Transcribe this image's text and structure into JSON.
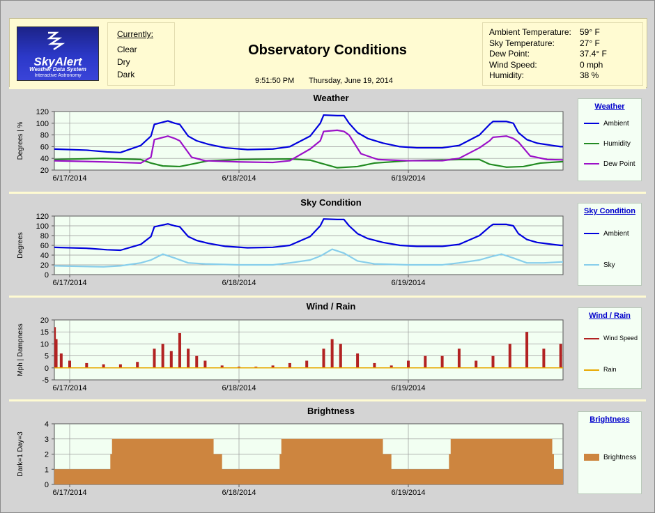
{
  "logo": {
    "brand": "SkyAlert",
    "sub1": "Weather Data System",
    "sub2": "Interactive Astronomy"
  },
  "currently": {
    "title": "Currently:",
    "items": [
      "Clear",
      "Dry",
      "Dark"
    ]
  },
  "title": "Observatory Conditions",
  "time": "9:51:50 PM",
  "date": "Thursday, June 19, 2014",
  "readings": [
    {
      "label": "Ambient Temperature:",
      "value": "59° F"
    },
    {
      "label": "Sky Temperature:",
      "value": "27° F"
    },
    {
      "label": "Dew Point:",
      "value": "37.4° F"
    },
    {
      "label": "Wind Speed:",
      "value": "0 mph"
    },
    {
      "label": "Humidity:",
      "value": "38 %"
    }
  ],
  "colors": {
    "ambient": "#0000dd",
    "humidity": "#228b22",
    "dewpoint": "#9b10c8",
    "sky": "#87ceeb",
    "wind": "#b22222",
    "rain": "#e8a800",
    "brightness": "#cd853f",
    "plot_bg": "#f2fff2"
  },
  "chart_data": [
    {
      "type": "line",
      "title": "Weather",
      "ylabel": "Degrees | %",
      "ylim": [
        20,
        120
      ],
      "yticks": [
        20,
        40,
        60,
        80,
        100,
        120
      ],
      "xlim": [
        0,
        3
      ],
      "xticks": [
        {
          "x": 0,
          "label": "6/17/2014"
        },
        {
          "x": 1,
          "label": "6/18/2014"
        },
        {
          "x": 2,
          "label": "6/19/2014"
        }
      ],
      "grid": true,
      "legend_title": "Weather",
      "series": [
        {
          "name": "Ambient",
          "color": "#0000dd",
          "x": [
            -0.1,
            0.1,
            0.22,
            0.3,
            0.42,
            0.48,
            0.5,
            0.58,
            0.62,
            0.65,
            0.7,
            0.75,
            0.82,
            0.92,
            1.05,
            1.2,
            1.3,
            1.42,
            1.48,
            1.5,
            1.58,
            1.62,
            1.65,
            1.7,
            1.76,
            1.85,
            1.95,
            2.05,
            2.2,
            2.3,
            2.42,
            2.48,
            2.5,
            2.58,
            2.62,
            2.65,
            2.7,
            2.76,
            2.85,
            2.9,
            2.95,
            3
          ],
          "y": [
            56,
            54,
            51,
            50,
            62,
            78,
            98,
            104,
            100,
            98,
            78,
            70,
            64,
            58,
            55,
            56,
            60,
            78,
            100,
            114,
            113,
            113,
            100,
            84,
            74,
            66,
            60,
            58,
            58,
            62,
            80,
            98,
            103,
            103,
            100,
            84,
            72,
            66,
            62,
            60,
            60,
            60
          ]
        },
        {
          "name": "Humidity",
          "color": "#228b22",
          "x": [
            -0.1,
            0.2,
            0.42,
            0.48,
            0.55,
            0.65,
            0.72,
            0.82,
            1.0,
            1.3,
            1.42,
            1.48,
            1.58,
            1.7,
            1.8,
            2.0,
            2.3,
            2.42,
            2.48,
            2.58,
            2.68,
            2.78,
            3
          ],
          "y": [
            38,
            40,
            38,
            32,
            27,
            26,
            30,
            36,
            38,
            39,
            37,
            32,
            24,
            26,
            32,
            36,
            38,
            38,
            30,
            25,
            26,
            32,
            36
          ]
        },
        {
          "name": "Dew Point",
          "color": "#9b10c8",
          "x": [
            -0.1,
            0.2,
            0.42,
            0.48,
            0.5,
            0.58,
            0.62,
            0.65,
            0.72,
            0.8,
            1.0,
            1.2,
            1.3,
            1.42,
            1.48,
            1.5,
            1.58,
            1.62,
            1.65,
            1.72,
            1.82,
            2.0,
            2.2,
            2.3,
            2.42,
            2.48,
            2.5,
            2.58,
            2.62,
            2.65,
            2.72,
            2.82,
            3
          ],
          "y": [
            36,
            34,
            32,
            42,
            72,
            78,
            74,
            70,
            42,
            36,
            34,
            33,
            36,
            56,
            70,
            86,
            88,
            86,
            80,
            48,
            38,
            36,
            36,
            40,
            58,
            70,
            76,
            78,
            74,
            68,
            44,
            38,
            37
          ]
        }
      ]
    },
    {
      "type": "line",
      "title": "Sky Condition",
      "ylabel": "Degrees",
      "ylim": [
        0,
        120
      ],
      "yticks": [
        0,
        20,
        40,
        60,
        80,
        100,
        120
      ],
      "xlim": [
        0,
        3
      ],
      "xticks": [
        {
          "x": 0,
          "label": "6/17/2014"
        },
        {
          "x": 1,
          "label": "6/18/2014"
        },
        {
          "x": 2,
          "label": "6/19/2014"
        }
      ],
      "grid": true,
      "legend_title": "Sky Condition",
      "series": [
        {
          "name": "Ambient",
          "color": "#0000dd",
          "x": [
            -0.1,
            0.1,
            0.22,
            0.3,
            0.42,
            0.48,
            0.5,
            0.58,
            0.62,
            0.65,
            0.7,
            0.75,
            0.82,
            0.92,
            1.05,
            1.2,
            1.3,
            1.42,
            1.48,
            1.5,
            1.58,
            1.62,
            1.65,
            1.7,
            1.76,
            1.85,
            1.95,
            2.05,
            2.2,
            2.3,
            2.42,
            2.48,
            2.5,
            2.58,
            2.62,
            2.65,
            2.7,
            2.76,
            2.85,
            2.9,
            2.95,
            3
          ],
          "y": [
            56,
            54,
            51,
            50,
            62,
            78,
            98,
            104,
            100,
            98,
            78,
            70,
            64,
            58,
            55,
            56,
            60,
            78,
            100,
            114,
            113,
            113,
            100,
            84,
            74,
            66,
            60,
            58,
            58,
            62,
            80,
            98,
            103,
            103,
            100,
            84,
            72,
            66,
            62,
            60,
            60,
            60
          ]
        },
        {
          "name": "Sky",
          "color": "#87ceeb",
          "x": [
            -0.1,
            0.2,
            0.3,
            0.42,
            0.48,
            0.55,
            0.62,
            0.7,
            0.8,
            1.0,
            1.2,
            1.3,
            1.42,
            1.48,
            1.55,
            1.62,
            1.7,
            1.8,
            2.0,
            2.2,
            2.3,
            2.42,
            2.48,
            2.55,
            2.62,
            2.7,
            2.8,
            2.9,
            3
          ],
          "y": [
            18,
            16,
            18,
            24,
            30,
            42,
            34,
            24,
            22,
            20,
            20,
            24,
            30,
            38,
            52,
            44,
            28,
            22,
            20,
            20,
            24,
            30,
            36,
            42,
            34,
            24,
            24,
            26,
            26
          ]
        }
      ]
    },
    {
      "type": "bar",
      "title": "Wind / Rain",
      "ylabel": "Mph | Dampness",
      "ylim": [
        -5,
        20
      ],
      "yticks": [
        -5,
        0,
        5,
        10,
        15,
        20
      ],
      "xlim": [
        0,
        3
      ],
      "xticks": [
        {
          "x": 0,
          "label": "6/17/2014"
        },
        {
          "x": 1,
          "label": "6/18/2014"
        },
        {
          "x": 2,
          "label": "6/19/2014"
        }
      ],
      "grid": true,
      "legend_title": "Wind / Rain",
      "series": [
        {
          "name": "Wind Speed",
          "color": "#b22222",
          "x": [
            -0.09,
            -0.08,
            -0.05,
            0.0,
            0.1,
            0.2,
            0.3,
            0.4,
            0.5,
            0.55,
            0.6,
            0.65,
            0.7,
            0.75,
            0.8,
            0.9,
            1.0,
            1.1,
            1.2,
            1.3,
            1.4,
            1.5,
            1.55,
            1.6,
            1.7,
            1.8,
            1.9,
            2.0,
            2.1,
            2.2,
            2.3,
            2.4,
            2.5,
            2.6,
            2.7,
            2.8,
            2.9,
            3.0
          ],
          "y": [
            17,
            12,
            6,
            3,
            2,
            1.5,
            1.5,
            2.5,
            8,
            10,
            7,
            14.5,
            8,
            5,
            3,
            1,
            0.5,
            0.5,
            1,
            2,
            3,
            8,
            12,
            10,
            6,
            2,
            1,
            3,
            5,
            5,
            8,
            3,
            5,
            10,
            15,
            8,
            10,
            4
          ]
        },
        {
          "name": "Rain",
          "color": "#e8a800",
          "x": [
            -0.1,
            3.0
          ],
          "y": [
            0,
            0
          ]
        }
      ]
    },
    {
      "type": "area",
      "title": "Brightness",
      "ylabel": "Dark=1  Day=3",
      "ylim": [
        0,
        4
      ],
      "yticks": [
        0,
        1,
        2,
        3,
        4
      ],
      "xlim": [
        0,
        3
      ],
      "xticks": [
        {
          "x": 0,
          "label": "6/17/2014"
        },
        {
          "x": 1,
          "label": "6/18/2014"
        },
        {
          "x": 2,
          "label": "6/19/2014"
        }
      ],
      "grid": true,
      "legend_title": "Brightness",
      "series": [
        {
          "name": "Brightness",
          "color": "#cd853f",
          "x": [
            -0.1,
            0.24,
            0.24,
            0.25,
            0.25,
            0.85,
            0.85,
            0.9,
            0.9,
            1.24,
            1.24,
            1.25,
            1.25,
            1.85,
            1.85,
            1.9,
            1.9,
            2.24,
            2.24,
            2.25,
            2.25,
            2.85,
            2.85,
            2.86,
            2.86,
            3.0
          ],
          "y": [
            1,
            1,
            2,
            2,
            3,
            3,
            2,
            2,
            1,
            1,
            2,
            2,
            3,
            3,
            2,
            2,
            1,
            1,
            2,
            2,
            3,
            3,
            2,
            2,
            1,
            1
          ]
        }
      ]
    }
  ]
}
